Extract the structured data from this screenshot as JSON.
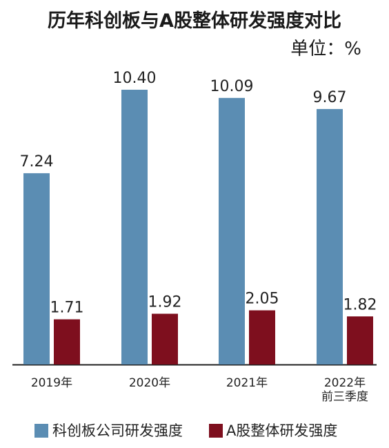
{
  "chart_data": {
    "type": "bar",
    "title": "历年科创板与A股整体研发强度对比",
    "unit": "单位：%",
    "categories": [
      [
        "2019年"
      ],
      [
        "2020年"
      ],
      [
        "2021年"
      ],
      [
        "2022年",
        "前三季度"
      ]
    ],
    "series": [
      {
        "name": "科创板公司研发强度",
        "color": "#5b8db3",
        "values": [
          7.24,
          10.4,
          10.09,
          9.67
        ],
        "labels": [
          "7.24",
          "10.40",
          "10.09",
          "9.67"
        ]
      },
      {
        "name": "A股整体研发强度",
        "color": "#7e0f1e",
        "values": [
          1.71,
          1.92,
          2.05,
          1.82
        ],
        "labels": [
          "1.71",
          "1.92",
          "2.05",
          "1.82"
        ]
      }
    ],
    "ylim": [
      0,
      10.4
    ],
    "grid": false,
    "legend": "bottom"
  }
}
